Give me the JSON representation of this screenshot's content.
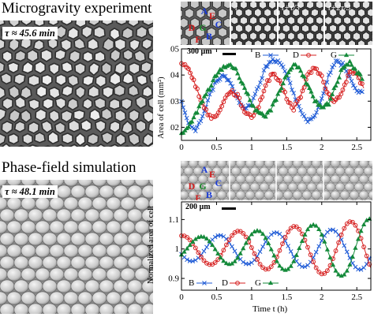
{
  "panels": {
    "top": {
      "heading": "Microgravity experiment",
      "tau_label": "τ ≈ 45.6 min",
      "scale_bar": "300 µm",
      "inset_frames": [
        "t",
        "t+τ/3",
        "t+2τ/3"
      ],
      "cell_letters": [
        {
          "text": "A",
          "color": "#1a3bd6"
        },
        {
          "text": "E",
          "color": "#d41c1c"
        },
        {
          "text": "C",
          "color": "#1a3bd6"
        },
        {
          "text": "D",
          "color": "#d41c1c"
        },
        {
          "text": "G",
          "color": "#1a8a2a"
        },
        {
          "text": "B",
          "color": "#1a3bd6"
        },
        {
          "text": "F",
          "color": "#d41c1c"
        }
      ]
    },
    "bottom": {
      "heading": "Phase-field simulation",
      "tau_label": "τ ≈ 48.1 min",
      "scale_bar": "200 µm",
      "cell_letters": [
        {
          "text": "A",
          "color": "#1a3bd6"
        },
        {
          "text": "E",
          "color": "#d41c1c"
        },
        {
          "text": "C",
          "color": "#1a3bd6"
        },
        {
          "text": "D",
          "color": "#d41c1c"
        },
        {
          "text": "G",
          "color": "#1a8a2a"
        },
        {
          "text": "B",
          "color": "#1a3bd6"
        },
        {
          "text": "F",
          "color": "#d41c1c"
        }
      ]
    }
  },
  "colors": {
    "B": "#1f5bd6",
    "D": "#d62020",
    "G": "#148a3a"
  },
  "chart_data": [
    {
      "type": "line",
      "ylabel": "Area of cell (mm²)",
      "xlim": [
        0,
        2.7
      ],
      "ylim": [
        0.015,
        0.05
      ],
      "xticks": [
        "0",
        "0.5",
        "1",
        "1.5",
        "2",
        "2.5"
      ],
      "xtick_values": [
        0,
        0.5,
        1,
        1.5,
        2,
        2.5
      ],
      "yticks": [
        "0.02",
        "0.03",
        "0.04",
        "0.05"
      ],
      "ytick_values": [
        0.02,
        0.03,
        0.04,
        0.05
      ],
      "legend": {
        "position": "top-right",
        "entries": [
          "B",
          "D",
          "G"
        ]
      },
      "series": [
        {
          "name": "B",
          "marker": "x",
          "x": [
            0.0,
            0.1,
            0.2,
            0.3,
            0.4,
            0.5,
            0.6,
            0.7,
            0.8,
            0.9,
            1.0,
            1.1,
            1.2,
            1.3,
            1.4,
            1.5,
            1.6,
            1.7,
            1.8,
            1.9,
            2.0,
            2.1,
            2.2,
            2.3,
            2.4,
            2.5,
            2.6
          ],
          "y": [
            0.03,
            0.021,
            0.019,
            0.024,
            0.032,
            0.038,
            0.04,
            0.037,
            0.031,
            0.027,
            0.029,
            0.036,
            0.043,
            0.046,
            0.045,
            0.04,
            0.033,
            0.026,
            0.022,
            0.024,
            0.031,
            0.04,
            0.045,
            0.044,
            0.039,
            0.034,
            0.033
          ]
        },
        {
          "name": "D",
          "marker": "o",
          "x": [
            0.0,
            0.1,
            0.2,
            0.3,
            0.4,
            0.5,
            0.6,
            0.7,
            0.8,
            0.9,
            1.0,
            1.1,
            1.2,
            1.3,
            1.4,
            1.5,
            1.6,
            1.7,
            1.8,
            1.9,
            2.0,
            2.1,
            2.2,
            2.3,
            2.4,
            2.5,
            2.6
          ],
          "y": [
            0.044,
            0.043,
            0.036,
            0.029,
            0.024,
            0.024,
            0.03,
            0.034,
            0.032,
            0.026,
            0.024,
            0.028,
            0.036,
            0.041,
            0.038,
            0.031,
            0.027,
            0.032,
            0.04,
            0.043,
            0.039,
            0.032,
            0.03,
            0.034,
            0.042,
            0.04,
            0.035
          ]
        },
        {
          "name": "G",
          "marker": "triangle",
          "x": [
            0.0,
            0.1,
            0.2,
            0.3,
            0.4,
            0.5,
            0.6,
            0.7,
            0.8,
            0.9,
            1.0,
            1.1,
            1.2,
            1.3,
            1.4,
            1.5,
            1.6,
            1.7,
            1.8,
            1.9,
            2.0,
            2.1,
            2.2,
            2.3,
            2.4,
            2.5,
            2.6
          ],
          "y": [
            0.017,
            0.02,
            0.025,
            0.03,
            0.035,
            0.04,
            0.043,
            0.044,
            0.041,
            0.035,
            0.029,
            0.025,
            0.024,
            0.028,
            0.034,
            0.04,
            0.044,
            0.042,
            0.036,
            0.03,
            0.027,
            0.029,
            0.036,
            0.043,
            0.045,
            0.041,
            0.038
          ]
        }
      ]
    },
    {
      "type": "line",
      "ylabel": "Normalized area of cell",
      "xlabel": "Time t (h)",
      "xlim": [
        0,
        2.7
      ],
      "ylim": [
        0.86,
        1.16
      ],
      "xticks": [
        "0",
        "0.5",
        "1",
        "1.5",
        "2",
        "2.5"
      ],
      "xtick_values": [
        0,
        0.5,
        1,
        1.5,
        2,
        2.5
      ],
      "yticks": [
        "0.9",
        "1",
        "1.1"
      ],
      "ytick_values": [
        0.9,
        1.0,
        1.1
      ],
      "legend": {
        "position": "bottom-center",
        "entries": [
          "B",
          "D",
          "G"
        ]
      },
      "series": [
        {
          "name": "B",
          "marker": "x",
          "amplitude": 0.04,
          "amp_growth": 0.012,
          "period": 0.8,
          "phase": 3.6,
          "offset": 1.0
        },
        {
          "name": "D",
          "marker": "o",
          "amplitude": 0.045,
          "amp_growth": 0.02,
          "period": 0.8,
          "phase": 1.5,
          "offset": 1.0
        },
        {
          "name": "G",
          "marker": "triangle",
          "amplitude": 0.035,
          "amp_growth": 0.025,
          "period": 0.8,
          "phase": -0.6,
          "offset": 1.0
        }
      ]
    }
  ]
}
